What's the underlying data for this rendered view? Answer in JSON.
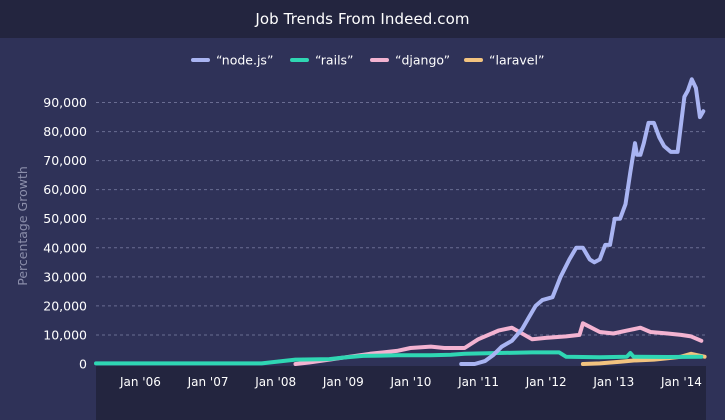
{
  "colors": {
    "background": "#2f3258",
    "title_bar": "#23253f",
    "grid": "#6a6d92",
    "axis_band": "#23253f"
  },
  "chart_data": {
    "type": "line",
    "title": "Job Trends From Indeed.com",
    "xlabel": "",
    "ylabel": "Percentage Growth",
    "ylim": [
      0,
      95000
    ],
    "xlim": [
      2005.55,
      2014.57
    ],
    "y_ticks": [
      0,
      10000,
      20000,
      30000,
      40000,
      50000,
      60000,
      70000,
      80000,
      90000
    ],
    "y_tick_labels": [
      "0",
      "10,000",
      "20,000",
      "30,000",
      "40,000",
      "50,000",
      "60,000",
      "70,000",
      "80,000",
      "90,000"
    ],
    "x_ticks": [
      2006,
      2007,
      2008,
      2009,
      2010,
      2011,
      2012,
      2013,
      2014
    ],
    "x_tick_labels": [
      "Jan '06",
      "Jan '07",
      "Jan '08",
      "Jan '09",
      "Jan '10",
      "Jan '11",
      "Jan '12",
      "Jan '13",
      "Jan '14"
    ],
    "grid": true,
    "legend_position": "top-center",
    "series": [
      {
        "name": "“node.js”",
        "color": "#a9b4f2",
        "x": [
          2010.95,
          2011.15,
          2011.3,
          2011.42,
          2011.55,
          2011.7,
          2011.85,
          2011.95,
          2012.05,
          2012.15,
          2012.3,
          2012.42,
          2012.55,
          2012.65,
          2012.75,
          2012.85,
          2012.92,
          2013.0,
          2013.08,
          2013.15,
          2013.22,
          2013.3,
          2013.38,
          2013.45,
          2013.52,
          2013.55,
          2013.6,
          2013.65,
          2013.72,
          2013.8,
          2013.88,
          2013.95,
          2014.05,
          2014.15,
          2014.25,
          2014.3,
          2014.36,
          2014.42,
          2014.48,
          2014.53
        ],
        "values": [
          0,
          0,
          1000,
          3000,
          6000,
          8000,
          12000,
          16000,
          20000,
          22000,
          23000,
          30000,
          36000,
          40000,
          40000,
          36000,
          35000,
          36000,
          41000,
          41000,
          50000,
          50000,
          55000,
          66000,
          76000,
          72000,
          72000,
          76000,
          83000,
          83000,
          78000,
          75000,
          73000,
          73000,
          92000,
          94000,
          98000,
          95000,
          85000,
          87000
        ]
      },
      {
        "name": "“rails”",
        "color": "#2fd6b3",
        "x": [
          2005.55,
          2006.0,
          2007.0,
          2008.0,
          2008.5,
          2009.0,
          2009.2,
          2009.5,
          2010.0,
          2010.5,
          2010.8,
          2011.0,
          2011.5,
          2012.0,
          2012.4,
          2012.5,
          2013.0,
          2013.4,
          2013.45,
          2013.5,
          2014.0,
          2014.5
        ],
        "values": [
          200,
          200,
          200,
          200,
          1500,
          1700,
          2200,
          2800,
          3000,
          3000,
          3200,
          3500,
          3800,
          4000,
          4000,
          2500,
          2300,
          2500,
          3800,
          2500,
          2400,
          2500
        ]
      },
      {
        "name": "“django”",
        "color": "#f3b3d1",
        "x": [
          2008.5,
          2008.7,
          2009.0,
          2009.3,
          2009.6,
          2010.0,
          2010.2,
          2010.5,
          2010.7,
          2011.0,
          2011.2,
          2011.5,
          2011.7,
          2012.0,
          2012.2,
          2012.5,
          2012.7,
          2012.75,
          2013.0,
          2013.2,
          2013.4,
          2013.6,
          2013.75,
          2014.0,
          2014.2,
          2014.35,
          2014.5
        ],
        "values": [
          0,
          500,
          1500,
          2500,
          3500,
          4500,
          5500,
          6000,
          5500,
          5500,
          8500,
          11500,
          12500,
          8500,
          9000,
          9500,
          10000,
          14000,
          11000,
          10500,
          11500,
          12500,
          11000,
          10500,
          10000,
          9500,
          8000
        ]
      },
      {
        "name": "“laravel”",
        "color": "#f2c37f",
        "x": [
          2012.75,
          2013.0,
          2013.3,
          2013.5,
          2013.8,
          2014.0,
          2014.2,
          2014.35,
          2014.45,
          2014.55
        ],
        "values": [
          0,
          200,
          800,
          1200,
          1500,
          2000,
          2500,
          3500,
          3000,
          2500
        ]
      }
    ]
  }
}
